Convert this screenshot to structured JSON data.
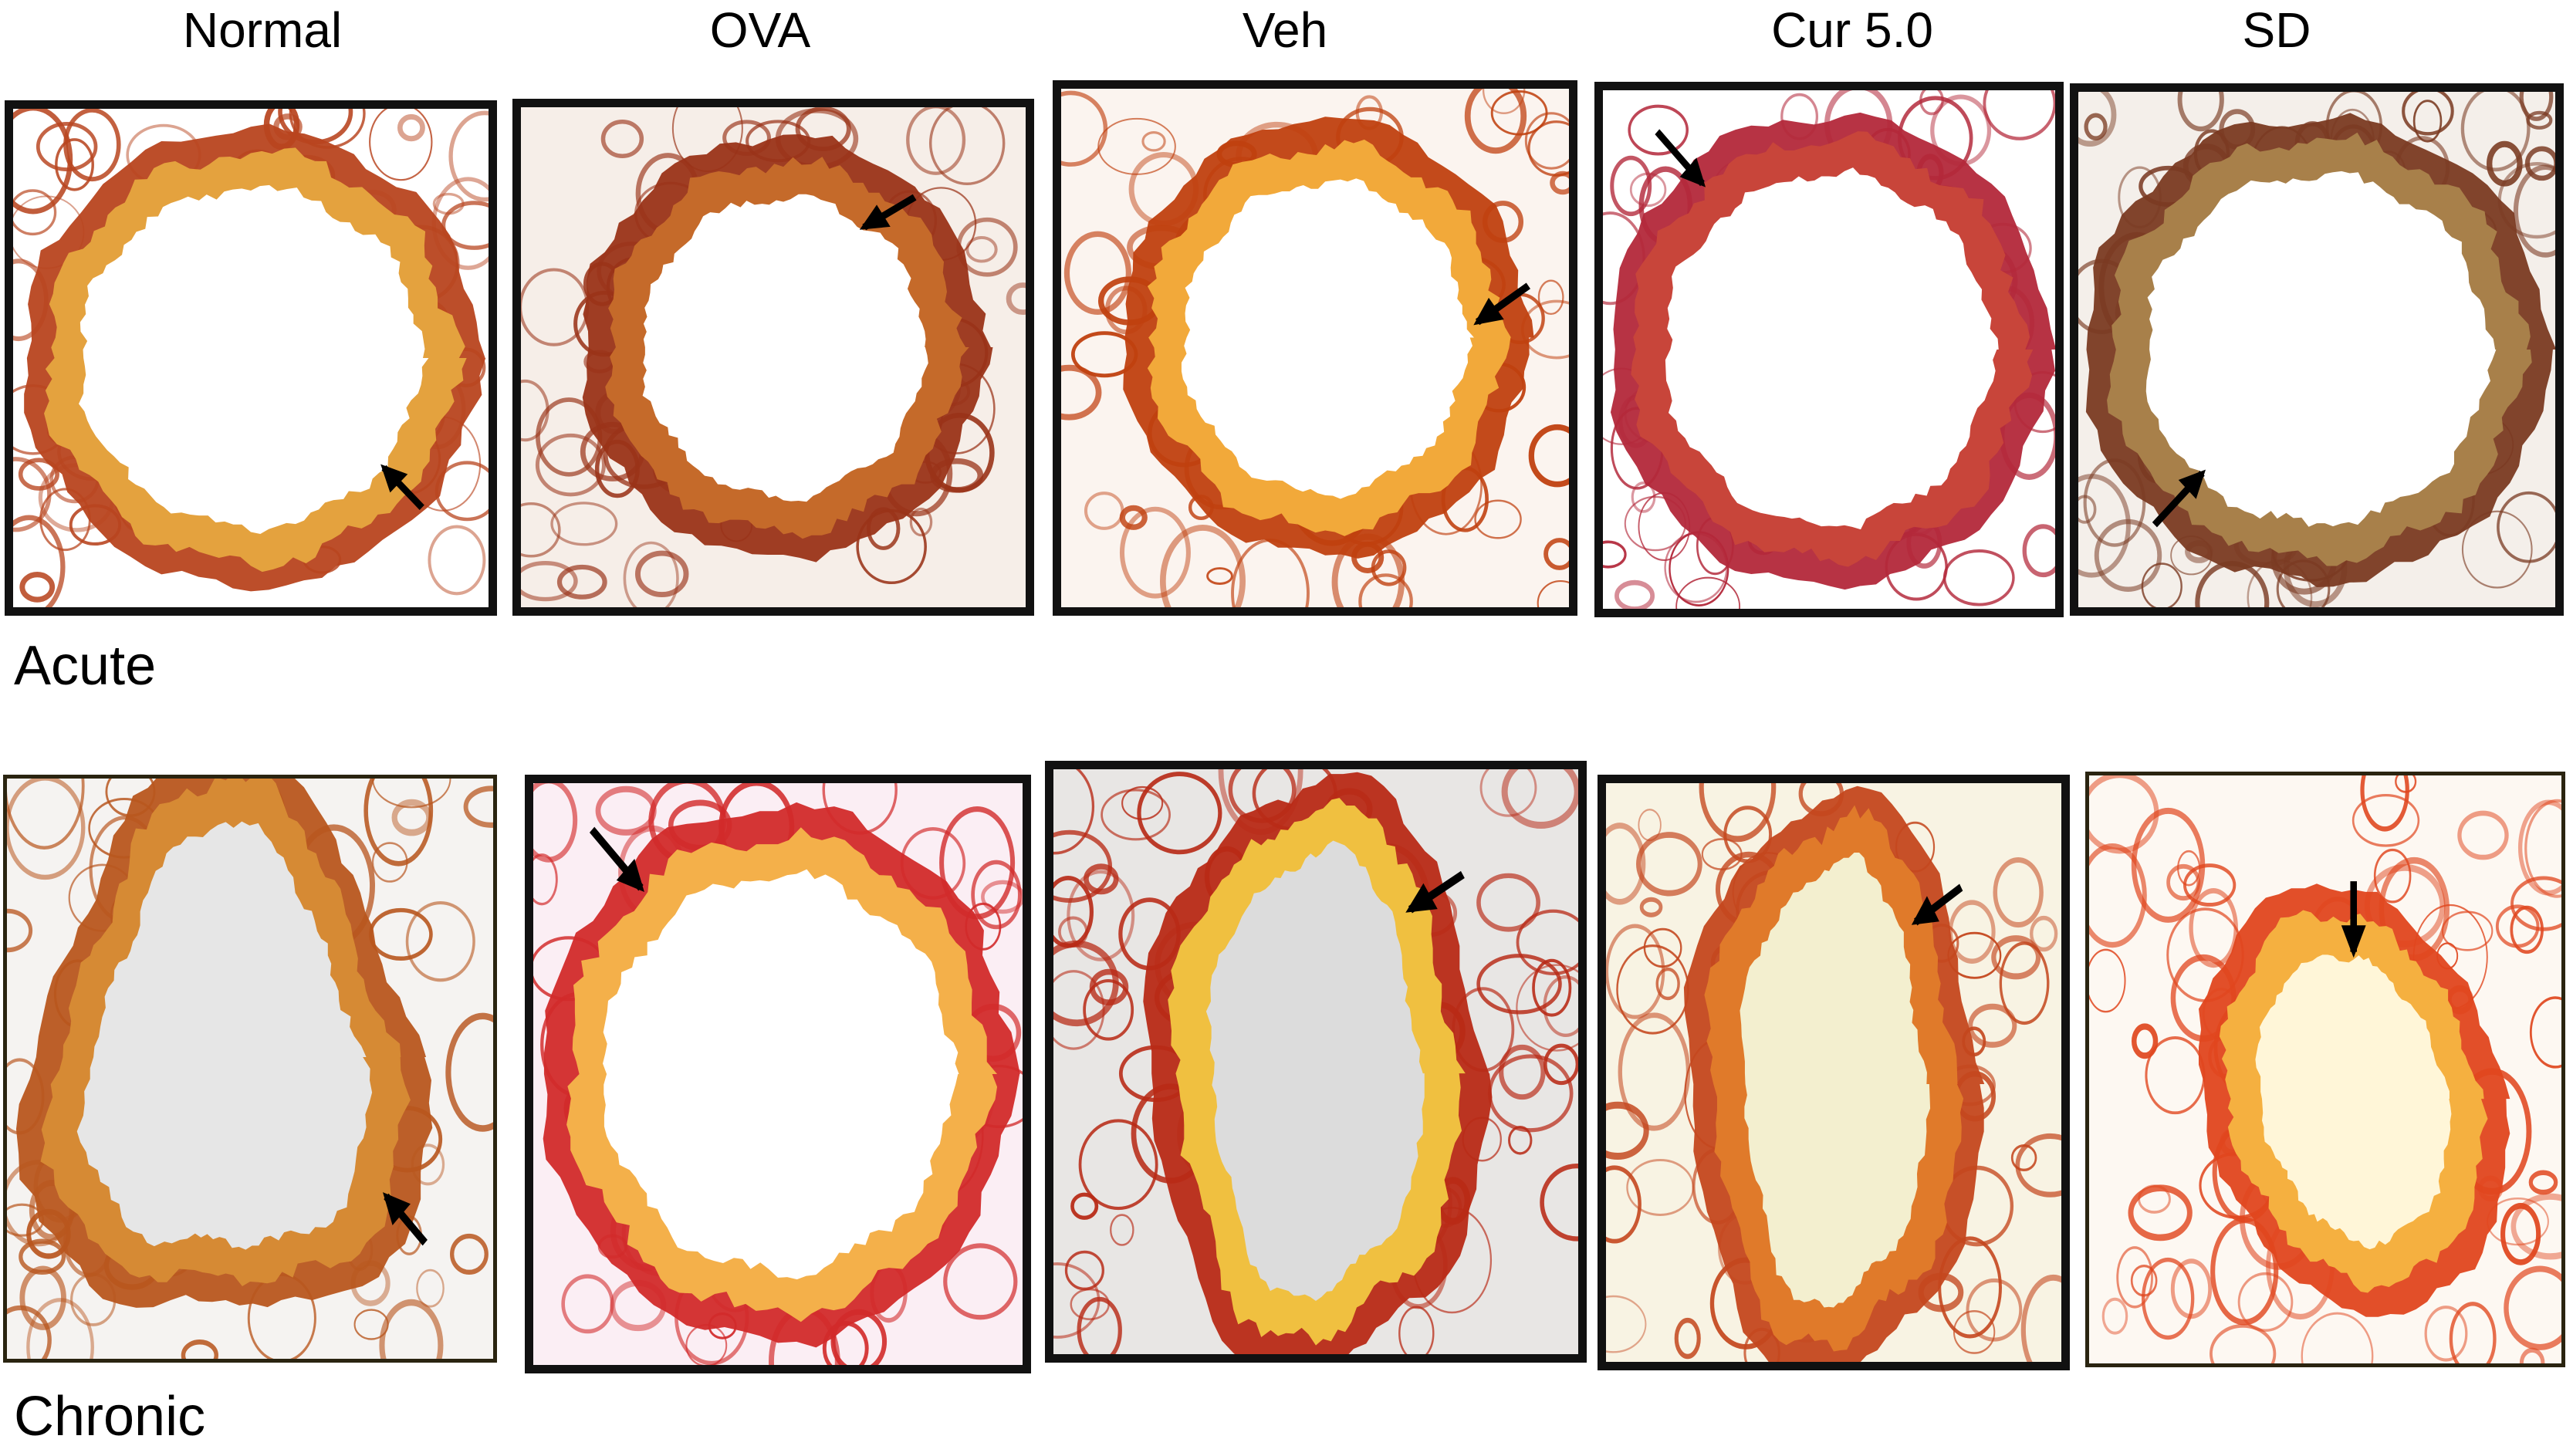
{
  "figure": {
    "columns": [
      {
        "label": "Normal"
      },
      {
        "label": "OVA"
      },
      {
        "label": "Veh"
      },
      {
        "label": "Cur 5.0"
      },
      {
        "label": "SD"
      }
    ],
    "rows": [
      {
        "label": "Acute"
      },
      {
        "label": "Chronic"
      }
    ]
  },
  "panels": [
    {
      "id": "acute-normal",
      "tissue": "#b8451f",
      "bg": "#ffffff",
      "lumen": "#ffffff",
      "epithelium": "#e4a23e",
      "shape": "circle",
      "arrow": "bottom-right"
    },
    {
      "id": "acute-ova",
      "tissue": "#9a3318",
      "bg": "#f6eee8",
      "lumen": "#ffffff",
      "epithelium": "#c56a2a",
      "shape": "circle-small",
      "arrow": "top-right"
    },
    {
      "id": "acute-veh",
      "tissue": "#c0400f",
      "bg": "#fbf4ef",
      "lumen": "#ffffff",
      "epithelium": "#f2a93a",
      "shape": "circle-small",
      "arrow": "right"
    },
    {
      "id": "acute-cur",
      "tissue": "#b3283a",
      "bg": "#ffffff",
      "lumen": "#ffffff",
      "epithelium": "#c8453a",
      "shape": "oval",
      "arrow": "top-left"
    },
    {
      "id": "acute-sd",
      "tissue": "#7a3a22",
      "bg": "#f4efea",
      "lumen": "#ffffff",
      "epithelium": "#a8804a",
      "shape": "oval",
      "arrow": "bottom-left"
    },
    {
      "id": "chronic-normal",
      "tissue": "#b8561e",
      "bg": "#f5f3f1",
      "lumen": "#e6e6e6",
      "epithelium": "#d68a34",
      "shape": "irregular",
      "arrow": "bottom-right"
    },
    {
      "id": "chronic-ova",
      "tissue": "#d22a2a",
      "bg": "#fbeef4",
      "lumen": "#ffffff",
      "epithelium": "#f4b04a",
      "shape": "circle",
      "arrow": "top-left"
    },
    {
      "id": "chronic-veh",
      "tissue": "#b82a16",
      "bg": "#e8e6e4",
      "lumen": "#dcdcdc",
      "epithelium": "#f0c040",
      "shape": "tall",
      "arrow": "top-right"
    },
    {
      "id": "chronic-cur",
      "tissue": "#c4471e",
      "bg": "#f8f3e3",
      "lumen": "#f3efcf",
      "epithelium": "#e07a2a",
      "shape": "tall",
      "arrow": "top-right"
    },
    {
      "id": "chronic-sd",
      "tissue": "#e0461e",
      "bg": "#fdf8f2",
      "lumen": "#fff6d8",
      "epithelium": "#f5b040",
      "shape": "blob",
      "arrow": "top-down"
    }
  ]
}
